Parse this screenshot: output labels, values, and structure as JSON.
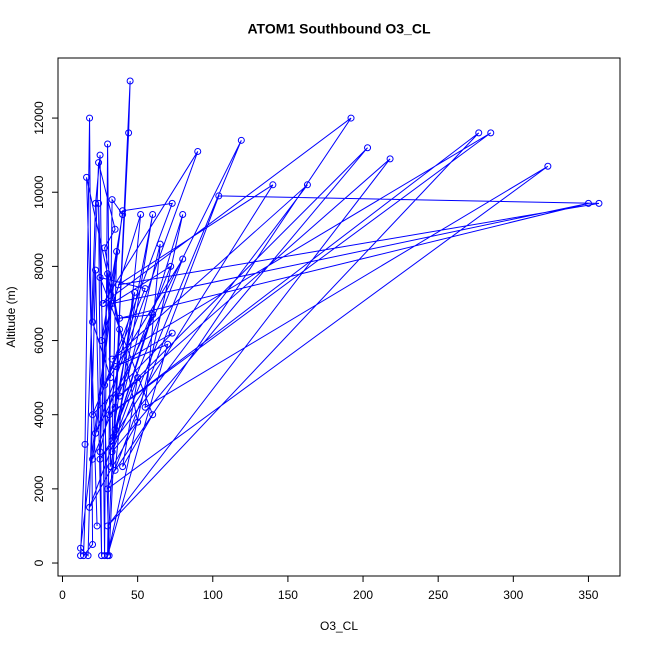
{
  "chart_data": {
    "type": "line",
    "title": "ATOM1 Southbound O3_CL",
    "x_label": "O3_CL",
    "y_label": "Altitude (m)",
    "color": "#0000ff",
    "marker": "open-circle",
    "xlim": [
      -3,
      371
    ],
    "ylim": [
      -350,
      13620
    ],
    "xticks": [
      0,
      50,
      100,
      150,
      200,
      250,
      300,
      350
    ],
    "yticks": [
      0,
      2000,
      4000,
      6000,
      8000,
      10000,
      12000
    ],
    "x": [
      12,
      15,
      18,
      20,
      14,
      22,
      25,
      28,
      30,
      32,
      60,
      35,
      45,
      44,
      30,
      33,
      40,
      26,
      52,
      35,
      192,
      27,
      90,
      22,
      119,
      33,
      203,
      38,
      218,
      30,
      277,
      31,
      285,
      33,
      163,
      25,
      140,
      37,
      357,
      104,
      30,
      323,
      55,
      65,
      35,
      80,
      28,
      73,
      40,
      20,
      72,
      33,
      350,
      38,
      60,
      34,
      80,
      30,
      70,
      35,
      73,
      20,
      55,
      25,
      60,
      40,
      50,
      18,
      50,
      28,
      35,
      24,
      20,
      32,
      30,
      25,
      48,
      33,
      36,
      12,
      17,
      22,
      26,
      24,
      31,
      38,
      16,
      23
    ],
    "values": [
      200,
      3200,
      12000,
      500,
      200,
      9700,
      11000,
      200,
      11300,
      2600,
      9400,
      4200,
      13000,
      11600,
      200,
      9800,
      9400,
      6000,
      9400,
      2500,
      12000,
      7000,
      11100,
      3500,
      11400,
      3000,
      11200,
      4500,
      10900,
      1000,
      11600,
      4000,
      11600,
      5500,
      10200,
      2800,
      10200,
      7500,
      9700,
      9900,
      2000,
      10700,
      4200,
      8600,
      3600,
      8200,
      4800,
      9700,
      9500,
      2800,
      8000,
      7000,
      9700,
      6600,
      6700,
      3400,
      9400,
      200,
      5900,
      5300,
      6200,
      4000,
      7400,
      7700,
      4000,
      2600,
      5000,
      1500,
      3800,
      8500,
      9000,
      10800,
      6500,
      5000,
      7800,
      3000,
      7300,
      3300,
      8400,
      400,
      200,
      7900,
      200,
      9700,
      200,
      6300,
      10400,
      1000
    ]
  }
}
